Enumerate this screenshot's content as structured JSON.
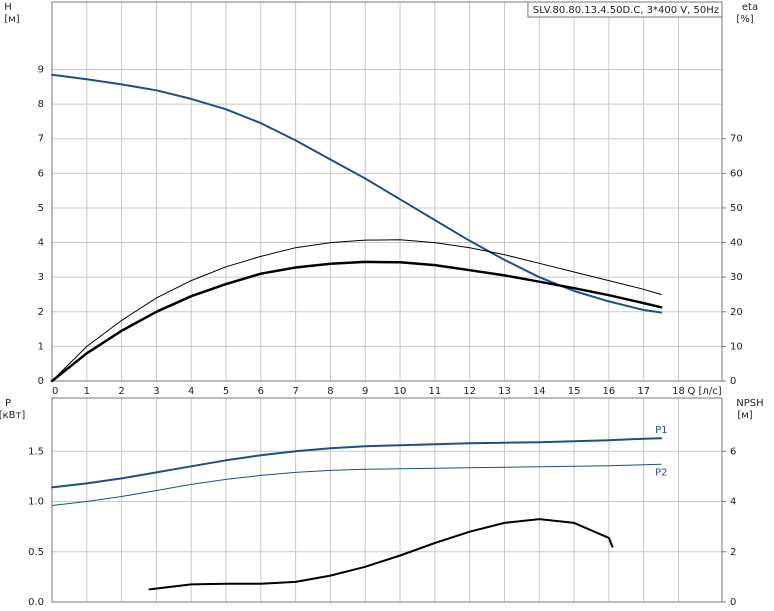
{
  "chart_data": [
    {
      "type": "line",
      "title": "SLV.80.80.13.4.50D.C, 3*400 V, 50Hz",
      "xlabel": "Q [л/с]",
      "ylabel": "H",
      "ylabel_unit": "[м]",
      "y2label": "eta",
      "y2label_unit": "[%]",
      "x": [
        0,
        1,
        2,
        3,
        4,
        5,
        6,
        7,
        8,
        9,
        10,
        11,
        12,
        13,
        14,
        15,
        16,
        17,
        17.5
      ],
      "xlim": [
        0,
        19.25
      ],
      "xticks": [
        0,
        1,
        2,
        3,
        4,
        5,
        6,
        7,
        8,
        9,
        10,
        11,
        12,
        13,
        14,
        15,
        16,
        17,
        18
      ],
      "ylim": [
        0,
        10.95
      ],
      "yticks": [
        0,
        1,
        2,
        3,
        4,
        5,
        6,
        7,
        8,
        9
      ],
      "y2lim": [
        0,
        109.5
      ],
      "y2ticks": [
        0,
        10,
        20,
        30,
        40,
        50,
        60,
        70
      ],
      "grid": true,
      "series": [
        {
          "color": "#1f4f8b",
          "width": 2,
          "values": [
            8.85,
            8.72,
            8.57,
            8.4,
            8.15,
            7.85,
            7.45,
            6.95,
            6.4,
            5.85,
            5.25,
            4.65,
            4.05,
            3.5,
            3.0,
            2.6,
            2.3,
            2.05,
            1.98
          ]
        },
        {
          "color": "#000000",
          "width": 1,
          "axis": "y2",
          "values": [
            0,
            10,
            17.5,
            24,
            29,
            33,
            36,
            38.5,
            40,
            40.7,
            40.8,
            40,
            38.5,
            36.5,
            34,
            31.5,
            29,
            26.5,
            25
          ]
        },
        {
          "color": "#000000",
          "width": 2.5,
          "axis": "y2",
          "values": [
            0,
            8,
            14.5,
            20,
            24.5,
            28,
            31,
            32.8,
            33.9,
            34.4,
            34.3,
            33.5,
            32,
            30.5,
            28.7,
            26.8,
            24.8,
            22.5,
            21.3
          ]
        }
      ]
    },
    {
      "type": "line",
      "ylabel": "P",
      "ylabel_unit": "[кВт]",
      "y2label": "NPSH",
      "y2label_unit": "[м]",
      "x": [
        0,
        1,
        2,
        3,
        4,
        5,
        6,
        7,
        8,
        9,
        10,
        11,
        12,
        13,
        14,
        15,
        16,
        17,
        17.5
      ],
      "xlim": [
        0,
        19.25
      ],
      "ylim": [
        0,
        2.03
      ],
      "yticks": [
        {
          "value": 0,
          "label": "0.0"
        },
        0.5,
        {
          "value": 1,
          "label": "1.0"
        },
        1.5
      ],
      "y2lim": [
        0,
        8.12
      ],
      "y2ticks": [
        0,
        2,
        4,
        6
      ],
      "grid": true,
      "series": [
        {
          "name": "P1",
          "color": "#1f4f8b",
          "width": 2,
          "values": [
            1.14,
            1.18,
            1.23,
            1.29,
            1.35,
            1.41,
            1.46,
            1.5,
            1.53,
            1.55,
            1.56,
            1.57,
            1.58,
            1.585,
            1.59,
            1.6,
            1.61,
            1.625,
            1.63
          ]
        },
        {
          "name": "P2",
          "color": "#1f4f8b",
          "width": 1,
          "values": [
            0.96,
            1.0,
            1.05,
            1.11,
            1.17,
            1.22,
            1.26,
            1.29,
            1.31,
            1.32,
            1.325,
            1.33,
            1.335,
            1.34,
            1.345,
            1.35,
            1.355,
            1.365,
            1.37
          ]
        },
        {
          "color": "#000000",
          "width": 2,
          "axis": "y2",
          "x": [
            2.8,
            4,
            5,
            6,
            7,
            8,
            9,
            10,
            11,
            12,
            13,
            14,
            15,
            16,
            16.1
          ],
          "values": [
            0.5,
            0.7,
            0.73,
            0.73,
            0.8,
            1.05,
            1.4,
            1.85,
            2.35,
            2.8,
            3.15,
            3.3,
            3.15,
            2.55,
            2.2
          ]
        }
      ]
    }
  ]
}
